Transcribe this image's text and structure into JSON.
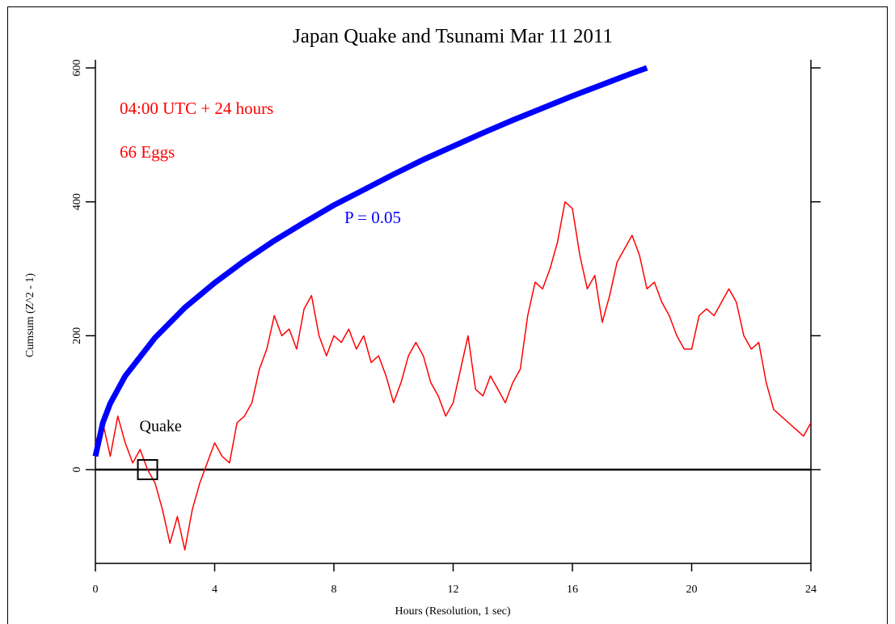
{
  "chart_data": {
    "type": "line",
    "title": "Japan Quake and Tsunami Mar 11 2011",
    "x_label": "Hours (Resolution, 1 sec)",
    "y_label": "Cumsum (Z^2 - 1)",
    "xlim": [
      0,
      24
    ],
    "xticks": [
      0,
      4,
      8,
      12,
      16,
      20,
      24
    ],
    "ylim": [
      -140,
      600
    ],
    "yticks": [
      0,
      200,
      400,
      600
    ],
    "reference_line": 0,
    "annotations": [
      "04:00 UTC + 24 hours",
      "66 Eggs"
    ],
    "markers": [
      {
        "label": "Quake",
        "x": 1.75,
        "y": 0
      }
    ],
    "series": [
      {
        "color": "#ff0000",
        "x": [
          0,
          0.25,
          0.5,
          0.75,
          1,
          1.25,
          1.5,
          1.75,
          2,
          2.25,
          2.5,
          2.75,
          3,
          3.25,
          3.5,
          3.75,
          4,
          4.25,
          4.5,
          4.75,
          5,
          5.25,
          5.5,
          5.75,
          6,
          6.25,
          6.5,
          6.75,
          7,
          7.25,
          7.5,
          7.75,
          8,
          8.25,
          8.5,
          8.75,
          9,
          9.25,
          9.5,
          9.75,
          10,
          10.25,
          10.5,
          10.75,
          11,
          11.25,
          11.5,
          11.75,
          12,
          12.25,
          12.5,
          12.75,
          13,
          13.25,
          13.5,
          13.75,
          14,
          14.25,
          14.5,
          14.75,
          15,
          15.25,
          15.5,
          15.75,
          16,
          16.25,
          16.5,
          16.75,
          17,
          17.25,
          17.5,
          17.75,
          18,
          18.25,
          18.5,
          18.75,
          19,
          19.25,
          19.5,
          19.75,
          20,
          20.25,
          20.5,
          20.75,
          21,
          21.25,
          21.5,
          21.75,
          22,
          22.25,
          22.5,
          22.75,
          23,
          23.25,
          23.5,
          23.75,
          24
        ],
        "values": [
          40,
          70,
          20,
          80,
          40,
          10,
          30,
          0,
          -20,
          -60,
          -110,
          -70,
          -120,
          -60,
          -20,
          10,
          40,
          20,
          10,
          70,
          80,
          100,
          150,
          180,
          230,
          200,
          210,
          180,
          240,
          260,
          200,
          170,
          200,
          190,
          210,
          180,
          200,
          160,
          170,
          140,
          100,
          130,
          170,
          190,
          170,
          130,
          110,
          80,
          100,
          150,
          200,
          120,
          110,
          140,
          120,
          100,
          130,
          150,
          230,
          280,
          270,
          300,
          340,
          400,
          390,
          320,
          270,
          290,
          220,
          260,
          310,
          330,
          350,
          320,
          270,
          280,
          250,
          230,
          200,
          180,
          180,
          230,
          240,
          230,
          250,
          270,
          250,
          200,
          180,
          190,
          130,
          90,
          80,
          70,
          60,
          50,
          70
        ]
      },
      {
        "name": "P = 0.05",
        "color": "#0000ff",
        "x": [
          0,
          0.25,
          0.5,
          1,
          2,
          3,
          4,
          5,
          6,
          7,
          8,
          9,
          10,
          11,
          12,
          13,
          14,
          15,
          16,
          17,
          18,
          18.5
        ],
        "values": [
          20,
          70,
          99,
          140,
          197,
          242,
          279,
          312,
          342,
          369,
          395,
          418,
          441,
          463,
          483,
          503,
          522,
          540,
          558,
          575,
          592,
          600
        ]
      }
    ]
  }
}
